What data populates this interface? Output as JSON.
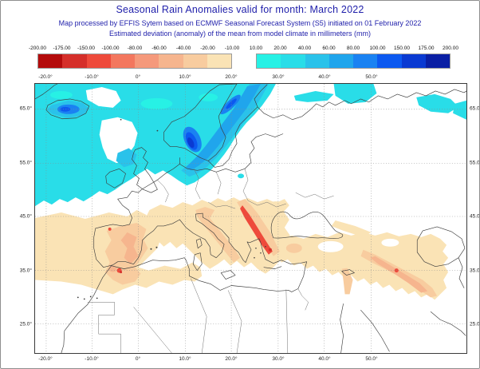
{
  "header": {
    "title": "Seasonal Rain Anomalies valid for month: March 2022",
    "subtitle_line1": "Map processed by EFFIS Sytem based on ECMWF Seasonal Forecast System (S5) initiated on 01 February 2022",
    "subtitle_line2": "Estimated deviation (anomaly) of the mean from model climate in millimeters (mm)",
    "text_color": "#1e1eaa"
  },
  "legend": {
    "units": "mm",
    "negative": {
      "labels": [
        "-200.00",
        "-175.00",
        "-150.00",
        "-100.00",
        "-80.00",
        "-60.00",
        "-40.00",
        "-20.00",
        "-10.00"
      ],
      "colors": [
        "#b40b0b",
        "#d52f2a",
        "#ee4a3b",
        "#f3775e",
        "#f5997b",
        "#f6b58e",
        "#f8cc9f",
        "#fae3b5"
      ]
    },
    "positive": {
      "labels": [
        "10.00",
        "20.00",
        "40.00",
        "60.00",
        "80.00",
        "100.00",
        "150.00",
        "175.00",
        "200.00"
      ],
      "colors": [
        "#27f1e5",
        "#29dde8",
        "#2ac2ea",
        "#20a5ec",
        "#1a82f2",
        "#0c59f0",
        "#0a3ad2",
        "#0a1fa4"
      ]
    }
  },
  "map": {
    "top_axis_labels": [
      "-20.0°",
      "-10.0°",
      "0°",
      "10.0°",
      "20.0°",
      "30.0°",
      "40.0°",
      "50.0°"
    ],
    "bottom_axis_labels": [
      "-20.0°",
      "-10.0°",
      "0°",
      "10.0°",
      "20.0°",
      "30.0°",
      "40.0°",
      "50.0°"
    ],
    "left_axis_labels": [
      "65.0°",
      "55.0°",
      "45.0°",
      "35.0°",
      "25.0°"
    ],
    "right_axis_labels": [
      "65.0°",
      "55.0°",
      "45.0°",
      "35.0°",
      "25.0°"
    ]
  }
}
